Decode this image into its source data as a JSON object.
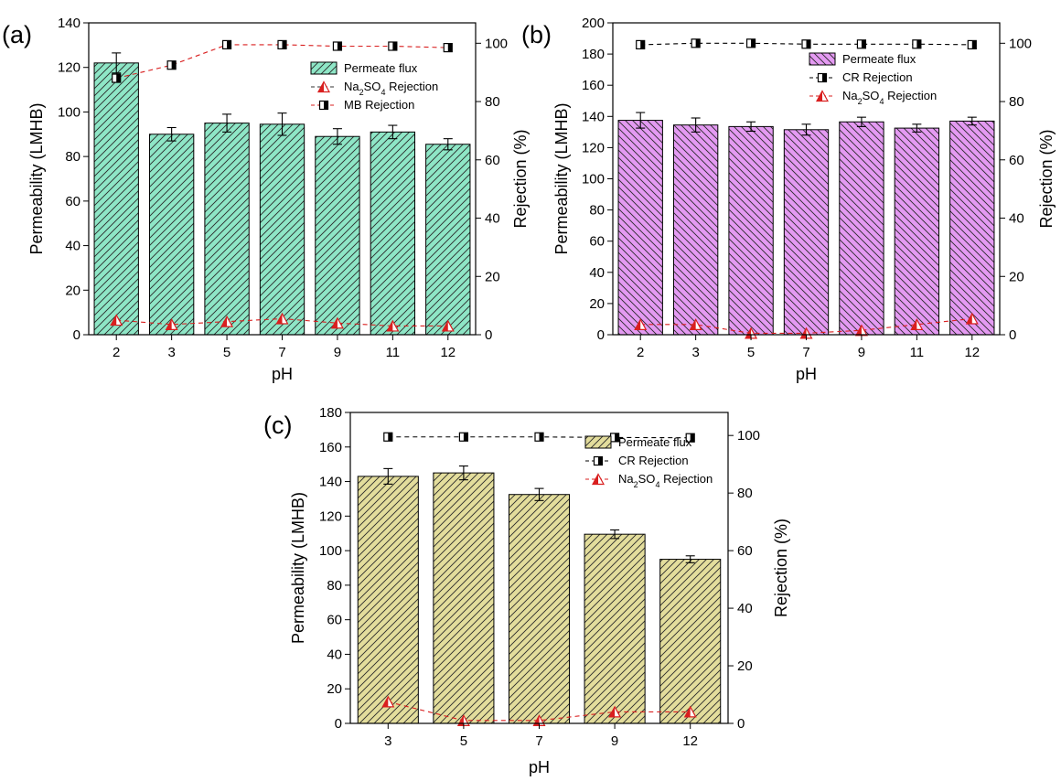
{
  "chart_data": [
    {
      "type": "bar",
      "panel_label": "(a)",
      "categories": [
        "2",
        "3",
        "5",
        "7",
        "9",
        "11",
        "12"
      ],
      "xlabel": "pH",
      "ylabel": "Permeability (LMHB)",
      "ylabel_right": "Rejection (%)",
      "ylim": [
        0,
        140
      ],
      "y_ticks": [
        "0",
        "20",
        "40",
        "60",
        "80",
        "100",
        "120",
        "140"
      ],
      "ylim_right": [
        0,
        107
      ],
      "y_ticks_right": [
        "0",
        "20",
        "40",
        "60",
        "80",
        "100"
      ],
      "bar_color": "#8ee6c6",
      "series": [
        {
          "name": "Permeate flux",
          "kind": "bar",
          "values": [
            122,
            90,
            95,
            94.5,
            89,
            91,
            85.5
          ],
          "errors": [
            4.5,
            3,
            4,
            5,
            3.5,
            3,
            2.5
          ]
        },
        {
          "name": "Na2SO4 Rejection",
          "kind": "line",
          "marker": "triangle",
          "color": "#d91f1f",
          "values": [
            5,
            3.5,
            4.5,
            5.5,
            4,
            3,
            3
          ]
        },
        {
          "name": "MB Rejection",
          "kind": "line",
          "marker": "square",
          "color": "#d91f1f",
          "values": [
            88,
            92.5,
            99.5,
            99.5,
            99,
            99,
            98.5
          ]
        }
      ],
      "legend": [
        {
          "kind": "bar",
          "text": "Permeate flux"
        },
        {
          "kind": "line",
          "marker": "triangle",
          "line_color": "#333333",
          "parts": [
            "Na",
            "2",
            "SO",
            "4",
            " Rejection"
          ]
        },
        {
          "kind": "line",
          "marker": "square",
          "line_color": "#d91f1f",
          "parts": [
            "MB Rejection"
          ]
        }
      ],
      "legend_position": "top-right"
    },
    {
      "type": "bar",
      "panel_label": "(b)",
      "categories": [
        "2",
        "3",
        "5",
        "7",
        "9",
        "11",
        "12"
      ],
      "xlabel": "pH",
      "ylabel": "Permeability (LMHB)",
      "ylabel_right": "Rejection (%)",
      "ylim": [
        0,
        200
      ],
      "y_ticks": [
        "0",
        "20",
        "40",
        "60",
        "80",
        "100",
        "120",
        "140",
        "160",
        "180",
        "200"
      ],
      "ylim_right": [
        0,
        107
      ],
      "y_ticks_right": [
        "0",
        "20",
        "40",
        "60",
        "80",
        "100"
      ],
      "bar_color": "#e49af2",
      "series": [
        {
          "name": "Permeate flux",
          "kind": "bar",
          "values": [
            137.5,
            134.5,
            133.5,
            131.5,
            136.5,
            132.5,
            137
          ],
          "errors": [
            5,
            4.5,
            3,
            3.5,
            3,
            2.5,
            2.5
          ]
        },
        {
          "name": "CR Rejection",
          "kind": "line",
          "marker": "square",
          "color": "#000000",
          "values": [
            99.5,
            100,
            100,
            99.7,
            99.7,
            99.7,
            99.5
          ]
        },
        {
          "name": "Na2SO4 Rejection",
          "kind": "line",
          "marker": "triangle",
          "color": "#d91f1f",
          "values": [
            3.5,
            3.5,
            0.5,
            0.5,
            1.5,
            3.5,
            5.5
          ]
        }
      ],
      "legend": [
        {
          "kind": "bar",
          "text": "Permeate flux"
        },
        {
          "kind": "line",
          "marker": "square",
          "line_color": "#000000",
          "parts": [
            "CR Rejection"
          ]
        },
        {
          "kind": "line",
          "marker": "triangle",
          "line_color": "#d91f1f",
          "parts": [
            "Na",
            "2",
            "SO",
            "4",
            " Rejection"
          ]
        }
      ],
      "legend_position": "top-right"
    },
    {
      "type": "bar",
      "panel_label": "(c)",
      "categories": [
        "3",
        "5",
        "7",
        "9",
        "12"
      ],
      "xlabel": "pH",
      "ylabel": "Permeability (LMHB)",
      "ylabel_right": "Rejection (%)",
      "ylim": [
        0,
        180
      ],
      "y_ticks": [
        "0",
        "20",
        "40",
        "60",
        "80",
        "100",
        "120",
        "140",
        "160",
        "180"
      ],
      "ylim_right": [
        0,
        108
      ],
      "y_ticks_right": [
        "0",
        "20",
        "40",
        "60",
        "80",
        "100"
      ],
      "bar_color": "#e3dd9c",
      "series": [
        {
          "name": "Permeate flux",
          "kind": "bar",
          "values": [
            143,
            145,
            132.5,
            109.5,
            95
          ],
          "errors": [
            4.5,
            4,
            3.5,
            2.5,
            2
          ]
        },
        {
          "name": "CR Rejection",
          "kind": "line",
          "marker": "square",
          "color": "#000000",
          "values": [
            99.5,
            99.5,
            99.5,
            99.3,
            99.2
          ]
        },
        {
          "name": "Na2SO4 Rejection",
          "kind": "line",
          "marker": "triangle",
          "color": "#d91f1f",
          "values": [
            7.5,
            1,
            1,
            4,
            4
          ]
        }
      ],
      "legend": [
        {
          "kind": "bar",
          "text": "Permeate flux"
        },
        {
          "kind": "line",
          "marker": "square",
          "line_color": "#000000",
          "parts": [
            "CR Rejection"
          ]
        },
        {
          "kind": "line",
          "marker": "triangle",
          "line_color": "#d91f1f",
          "parts": [
            "Na",
            "2",
            "SO",
            "4",
            " Rejection"
          ]
        }
      ],
      "legend_position": "top-right"
    }
  ]
}
